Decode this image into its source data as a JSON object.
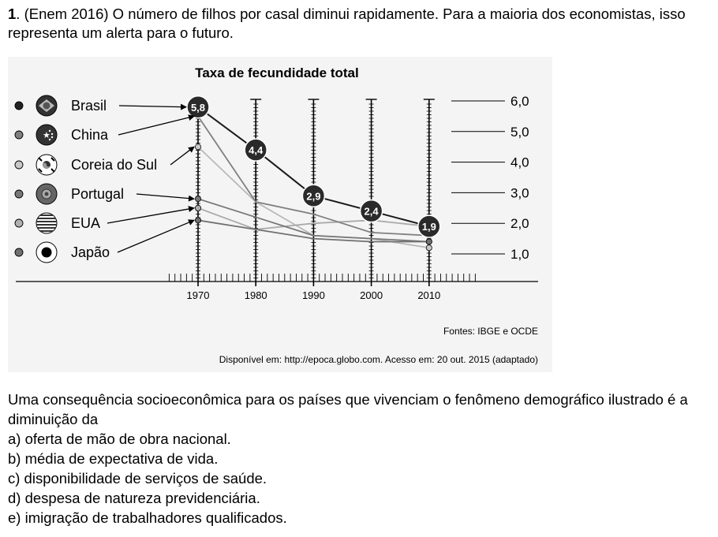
{
  "question": {
    "number": "1",
    "text": ". (Enem 2016)  O número de filhos por casal diminui rapidamente. Para a maioria dos economistas, isso representa um alerta para o futuro."
  },
  "chart_data": {
    "type": "line",
    "title": "Taxa de fecundidade total",
    "x": [
      1970,
      1980,
      1990,
      2000,
      2010
    ],
    "x_tick_labels": [
      "1970",
      "1980",
      "1990",
      "2000",
      "2010"
    ],
    "y_tick_labels": [
      "6,0",
      "5,0",
      "4,0",
      "3,0",
      "2,0",
      "1,0"
    ],
    "y_ticks": [
      6,
      5,
      4,
      3,
      2,
      1
    ],
    "ylim": [
      0.9,
      6.3
    ],
    "xlim": [
      1960,
      2020
    ],
    "grid": false,
    "legend_position": "left",
    "series": [
      {
        "name": "Brasil",
        "values": [
          5.8,
          4.4,
          2.9,
          2.4,
          1.9
        ],
        "color": "#1a1a1a",
        "dot_color": "#222222",
        "flag_icon": "brazil-flag-icon",
        "point_labels": [
          "5,8",
          "4,4",
          "2,9",
          "2,4",
          "1,9"
        ]
      },
      {
        "name": "China",
        "values": [
          5.5,
          2.7,
          2.3,
          1.7,
          1.6
        ],
        "color": "#808080",
        "dot_color": "#808080",
        "flag_icon": "china-flag-icon"
      },
      {
        "name": "Coreia do Sul",
        "values": [
          4.5,
          2.7,
          1.6,
          1.5,
          1.2
        ],
        "color": "#b8b8b8",
        "dot_color": "#c8c8c8",
        "flag_icon": "south-korea-flag-icon"
      },
      {
        "name": "Portugal",
        "values": [
          2.8,
          2.2,
          1.6,
          1.5,
          1.4
        ],
        "color": "#777777",
        "dot_color": "#777777",
        "flag_icon": "portugal-flag-icon"
      },
      {
        "name": "EUA",
        "values": [
          2.5,
          1.8,
          2.0,
          2.1,
          1.9
        ],
        "color": "#aaaaaa",
        "dot_color": "#b0b0b0",
        "flag_icon": "usa-flag-icon"
      },
      {
        "name": "Japão",
        "values": [
          2.1,
          1.8,
          1.5,
          1.4,
          1.4
        ],
        "color": "#707070",
        "dot_color": "#707070",
        "flag_icon": "japan-flag-icon"
      }
    ],
    "source": "Fontes: IBGE e OCDE"
  },
  "citation": "Disponível em: http://epoca.globo.com. Acesso em: 20 out. 2015 (adaptado)",
  "prompt": {
    "text": "Uma consequência socioeconômica para os países que vivenciam o fenômeno demográfico ilustrado é a diminuição da",
    "options": [
      "a) oferta de mão de obra nacional.",
      "b) média de expectativa de vida.",
      "c) disponibilidade de serviços de saúde.",
      "d) despesa de natureza previdenciária.",
      "e) imigração de trabalhadores qualificados."
    ]
  }
}
